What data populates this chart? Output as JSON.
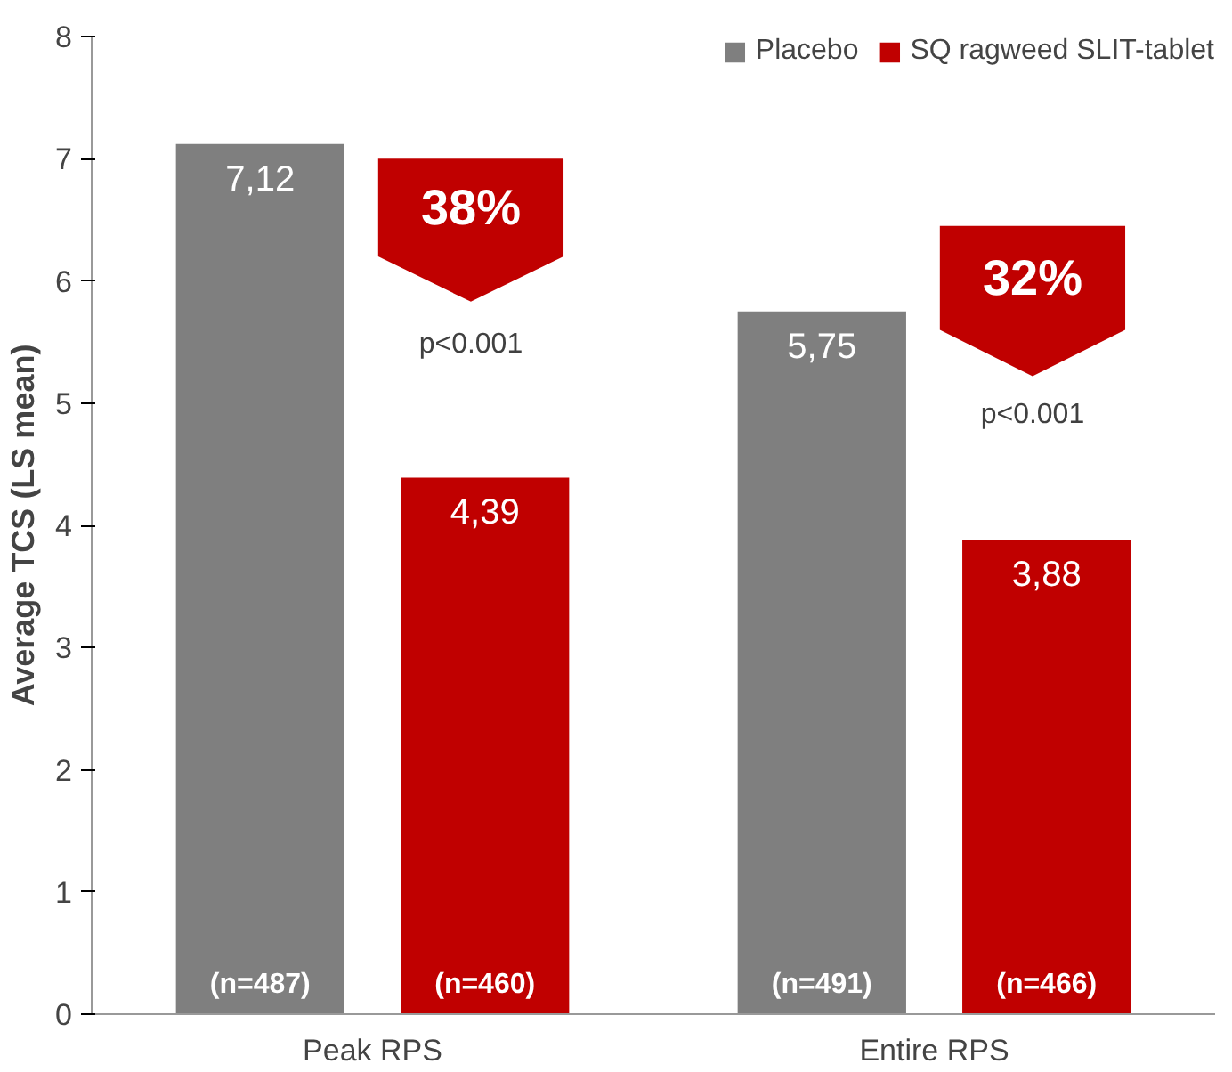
{
  "chart_data": {
    "type": "bar",
    "ylabel": "Average TCS (LS mean)",
    "categories": [
      "Peak RPS",
      "Entire RPS"
    ],
    "series": [
      {
        "name": "Placebo",
        "color": "#7f7f7f",
        "values": [
          7.12,
          5.75
        ],
        "value_labels": [
          "7,12",
          "5,75"
        ]
      },
      {
        "name": "SQ ragweed SLIT-tablet",
        "color": "#c00000",
        "values": [
          4.39,
          3.88
        ],
        "value_labels": [
          "4,39",
          "3,88"
        ]
      }
    ],
    "annotations": [
      "(n=487)",
      "(n=460)",
      "(n=491)",
      "(n=466)",
      "38%",
      "32%",
      "p<0.001",
      "p<0.001"
    ],
    "ylim": [
      0,
      8
    ],
    "yticks": [
      0,
      1,
      2,
      3,
      4,
      5,
      6,
      7,
      8
    ],
    "grid": false,
    "legend": "top right"
  }
}
